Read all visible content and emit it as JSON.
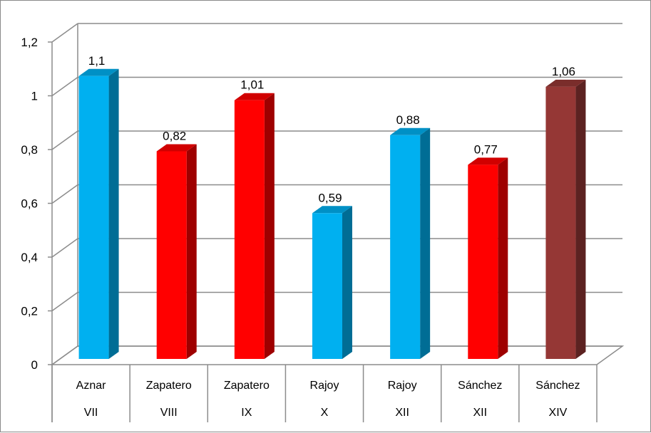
{
  "chart_data": {
    "type": "bar",
    "title": "",
    "xlabel": "",
    "ylabel": "",
    "ylim": [
      0,
      1.2
    ],
    "y_ticks": [
      "0",
      "0,2",
      "0,4",
      "0,6",
      "0,8",
      "1",
      "1,2"
    ],
    "three_d": true,
    "grid": true,
    "legend": "none",
    "categories": [
      {
        "name": "Aznar",
        "term": "VII"
      },
      {
        "name": "Zapatero",
        "term": "VIII"
      },
      {
        "name": "Zapatero",
        "term": "IX"
      },
      {
        "name": "Rajoy",
        "term": "X"
      },
      {
        "name": "Rajoy",
        "term": "XII"
      },
      {
        "name": "Sánchez",
        "term": "XII"
      },
      {
        "name": "Sánchez",
        "term": "XIV"
      }
    ],
    "values": [
      1.1,
      0.82,
      1.01,
      0.59,
      0.88,
      0.77,
      1.06
    ],
    "data_labels": [
      "1,1",
      "0,82",
      "1,01",
      "0,59",
      "0,88",
      "0,77",
      "1,06"
    ],
    "colors": [
      "#00b0f0",
      "#ff0000",
      "#ff0000",
      "#00b0f0",
      "#00b0f0",
      "#ff0000",
      "#953735"
    ]
  }
}
